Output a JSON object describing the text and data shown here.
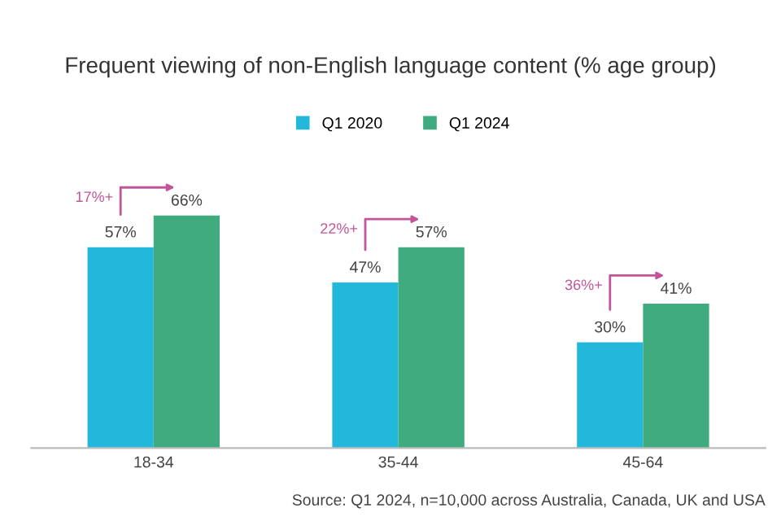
{
  "chart_data": {
    "type": "bar",
    "title": "Frequent viewing of non-English language content (% age group)",
    "categories": [
      "18-34",
      "35-44",
      "45-64"
    ],
    "series": [
      {
        "name": "Q1 2020",
        "color": "#22b8dc",
        "values": [
          57,
          47,
          30
        ],
        "value_labels": [
          "57%",
          "47%",
          "30%"
        ]
      },
      {
        "name": "Q1 2024",
        "color": "#3fab7f",
        "values": [
          66,
          57,
          41
        ],
        "value_labels": [
          "66%",
          "57%",
          "41%"
        ]
      }
    ],
    "annotations": [
      "17%+",
      "22%+",
      "36%+",
      "Source: Q1 2024, n=10,000 across Australia, Canada, UK and USA"
    ],
    "legend": "top",
    "grid": false
  }
}
